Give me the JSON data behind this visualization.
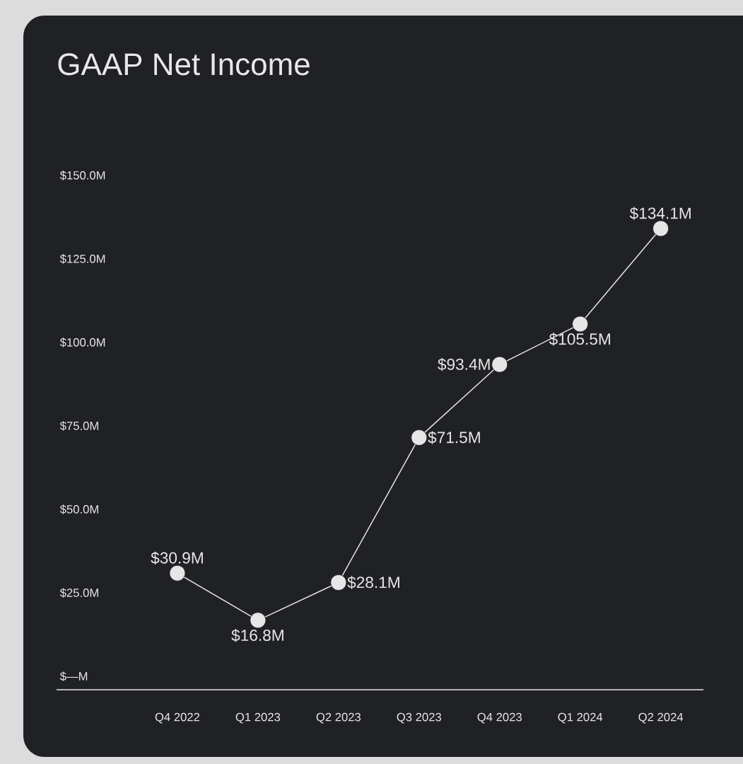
{
  "chart_data": {
    "type": "line",
    "title": "GAAP Net Income",
    "categories": [
      "Q4 2022",
      "Q1 2023",
      "Q2 2023",
      "Q3 2023",
      "Q4 2023",
      "Q1 2024",
      "Q2 2024"
    ],
    "values": [
      30.9,
      16.8,
      28.1,
      71.5,
      93.4,
      105.5,
      134.1
    ],
    "value_labels": [
      "$30.9M",
      "$16.8M",
      "$28.1M",
      "$71.5M",
      "$93.4M",
      "$105.5M",
      "$134.1M"
    ],
    "color": "#e6e6e6",
    "marker": "circle",
    "line_style": "solid",
    "grid": false,
    "ylim": [
      -4,
      150
    ],
    "yticks": [
      {
        "value": 0,
        "label": "$—M"
      },
      {
        "value": 25,
        "label": "$25.0M"
      },
      {
        "value": 50,
        "label": "$50.0M"
      },
      {
        "value": 75,
        "label": "$75.0M"
      },
      {
        "value": 100,
        "label": "$100.0M"
      },
      {
        "value": 125,
        "label": "$125.0M"
      },
      {
        "value": 150,
        "label": "$150.0M"
      }
    ]
  }
}
